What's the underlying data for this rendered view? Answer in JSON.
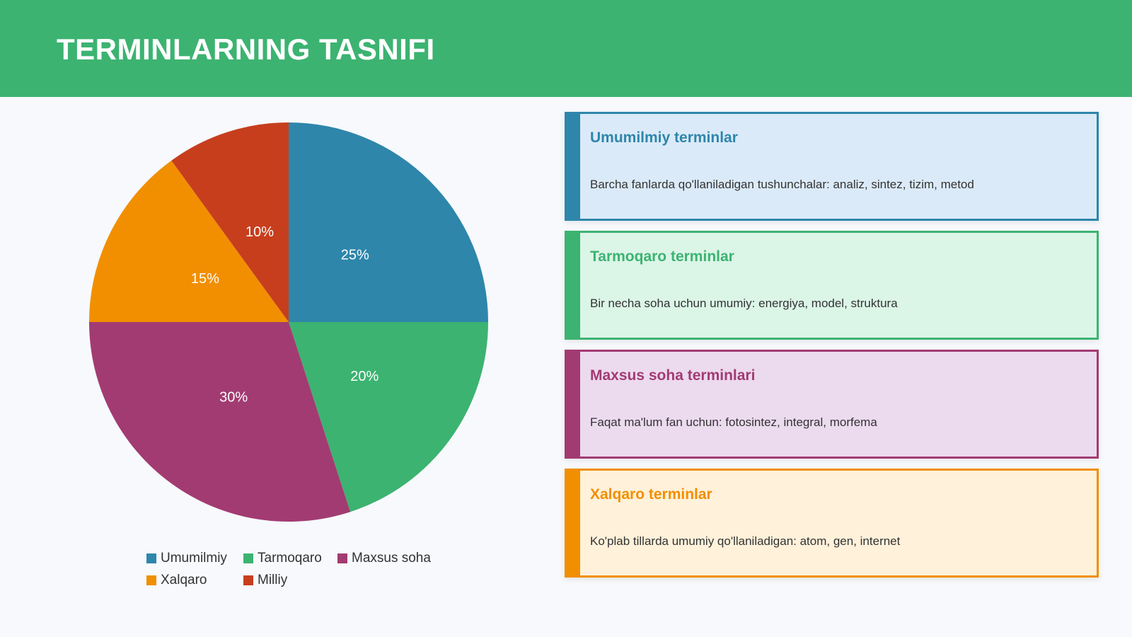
{
  "header": {
    "title": "TERMINLARNING TASNIFI"
  },
  "chart_data": {
    "type": "pie",
    "categories": [
      "Umumilmiy",
      "Tarmoqaro",
      "Maxsus soha",
      "Xalqaro",
      "Milliy"
    ],
    "values": [
      25,
      20,
      30,
      15,
      10
    ],
    "value_labels": [
      "25%",
      "20%",
      "30%",
      "15%",
      "10%"
    ],
    "colors": [
      "#2e86ab",
      "#3cb371",
      "#a23b72",
      "#f18f01",
      "#c73e1d"
    ]
  },
  "cards": [
    {
      "title": "Umumilmiy terminlar",
      "text": "Barcha fanlarda qo'llaniladigan tushunchalar: analiz, sintez, tizim, metod",
      "color": "#2e86ab",
      "background": "#dbeaf8"
    },
    {
      "title": "Tarmoqaro terminlar",
      "text": "Bir necha soha uchun umumiy: energiya, model, struktura",
      "color": "#3cb371",
      "background": "#dbf5e7"
    },
    {
      "title": "Maxsus soha terminlari",
      "text": "Faqat ma'lum fan uchun: fotosintez, integral, morfema",
      "color": "#a23b72",
      "background": "#ecdaef"
    },
    {
      "title": "Xalqaro terminlar",
      "text": "Ko'plab tillarda umumiy qo'llaniladigan: atom, gen, internet",
      "color": "#f18f01",
      "background": "#fff1da"
    }
  ]
}
